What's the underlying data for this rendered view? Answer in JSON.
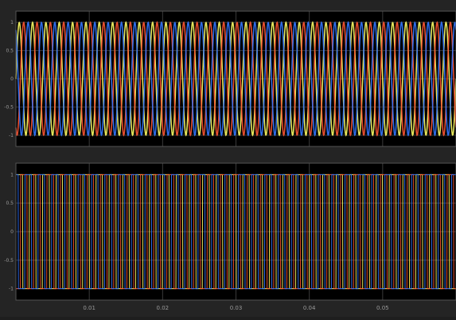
{
  "window": {
    "background": "#242424"
  },
  "chart_data": [
    {
      "type": "line",
      "title": "",
      "xlabel": "",
      "ylabel": "",
      "grid": true,
      "legend": "none",
      "xlim": [
        0,
        0.06
      ],
      "ylim": [
        -1.2,
        1.2
      ],
      "ytick_labels": [
        "1",
        "0.5",
        "0",
        "-0.5",
        "-1"
      ],
      "background": "#000000",
      "grid_color": "#3a3a3a",
      "waveform": "sine",
      "frequency_hz": 550,
      "series": [
        {
          "color": "#ffff66",
          "amplitude": 1.0,
          "phase_deg": 0
        },
        {
          "color": "#ff5533",
          "amplitude": 1.0,
          "phase_deg": -120
        },
        {
          "color": "#3377ff",
          "amplitude": 1.0,
          "phase_deg": 120
        }
      ]
    },
    {
      "type": "line",
      "title": "",
      "xlabel": "",
      "ylabel": "",
      "grid": true,
      "legend": "none",
      "xlim": [
        0,
        0.06
      ],
      "ylim": [
        -1.2,
        1.2
      ],
      "ytick_labels": [
        "1",
        "0.5",
        "0",
        "-0.5",
        "-1"
      ],
      "xtick_labels": [
        "0.01",
        "0.02",
        "0.03",
        "0.04",
        "0.05"
      ],
      "background": "#000000",
      "grid_color": "#3a3a3a",
      "waveform": "square",
      "frequency_hz": 550,
      "series": [
        {
          "color": "#ffff66",
          "amplitude": 1.0,
          "phase_deg": 0
        },
        {
          "color": "#ff5533",
          "amplitude": 1.0,
          "phase_deg": -120
        },
        {
          "color": "#3377ff",
          "amplitude": 1.0,
          "phase_deg": 120
        }
      ]
    }
  ]
}
